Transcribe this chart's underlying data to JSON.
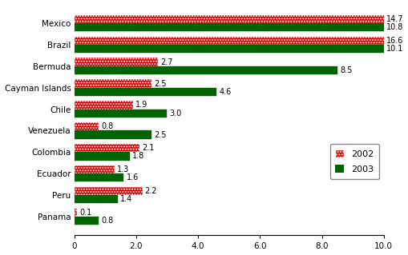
{
  "categories": [
    "Mexico",
    "Brazil",
    "Bermuda",
    "Cayman Islands",
    "Chile",
    "Venezuela",
    "Colombia",
    "Ecuador",
    "Peru",
    "Panama"
  ],
  "values_2002": [
    14.7,
    16.6,
    2.7,
    2.5,
    1.9,
    0.8,
    2.1,
    1.3,
    2.2,
    0.1
  ],
  "values_2003": [
    10.8,
    10.1,
    8.5,
    4.6,
    3.0,
    2.5,
    1.8,
    1.6,
    1.4,
    0.8
  ],
  "color_2002": "#DD0000",
  "color_2003": "#006400",
  "hatch_2002": ".....",
  "xlim": [
    0,
    10.0
  ],
  "xticks": [
    0,
    2.0,
    4.0,
    6.0,
    8.0,
    10.0
  ],
  "xticklabels": [
    "0",
    "2.0",
    "4.0",
    "6.0",
    "8.0",
    "10.0"
  ],
  "legend_2002": "2002",
  "legend_2003": "2003",
  "bar_height": 0.38,
  "label_fontsize": 7,
  "tick_fontsize": 7.5,
  "legend_fontsize": 8,
  "background_color": "#ffffff"
}
